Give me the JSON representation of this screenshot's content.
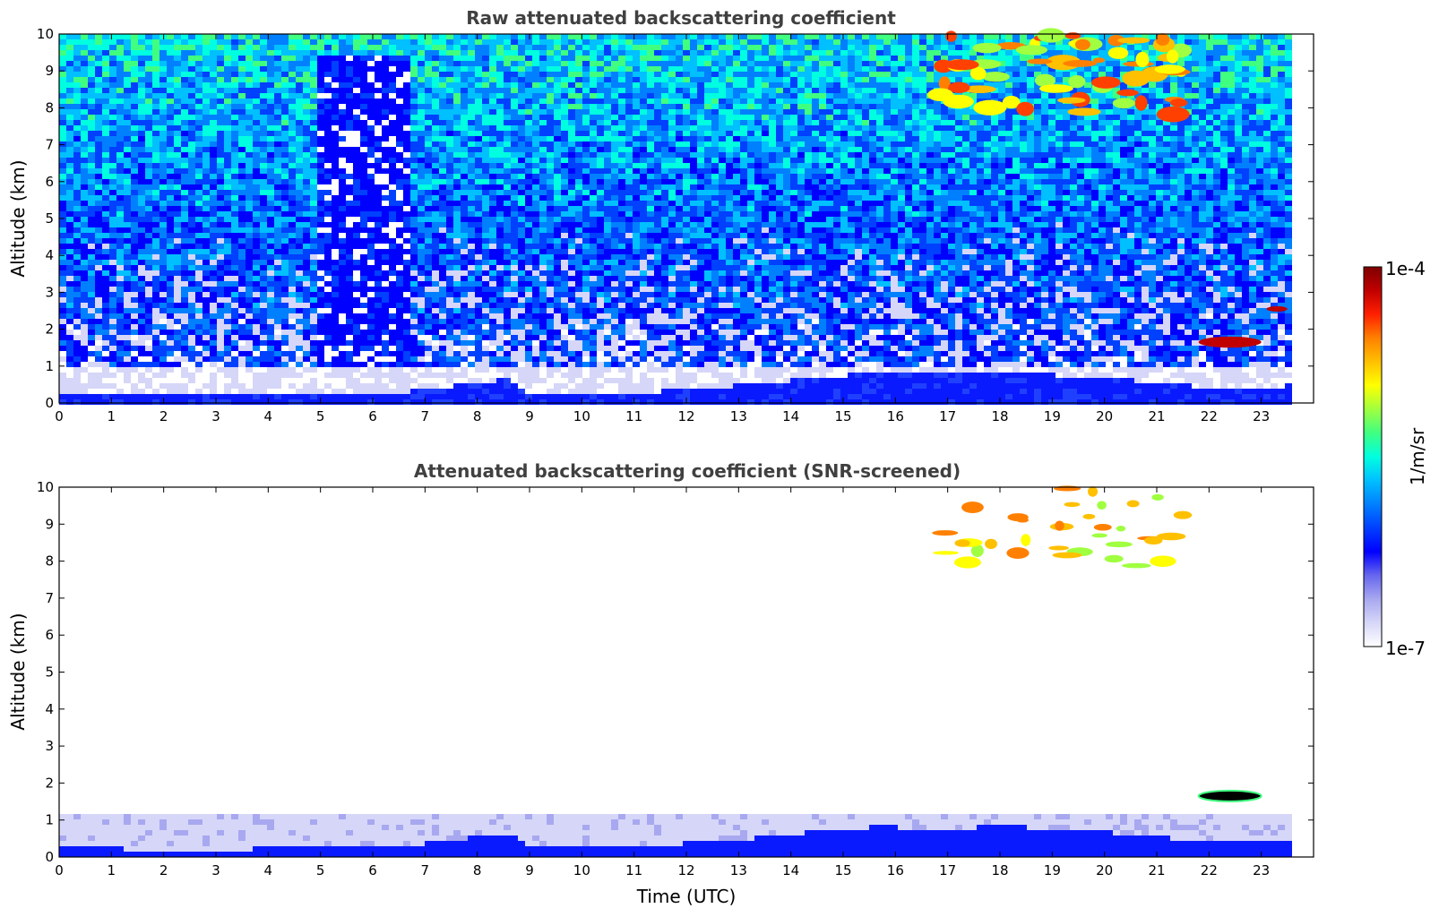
{
  "chart_data": [
    {
      "type": "heatmap",
      "title": "Raw attenuated backscattering coefficient",
      "xlabel": "",
      "ylabel": "Altitude (km)",
      "xlim": [
        0,
        24
      ],
      "ylim": [
        0,
        10
      ],
      "x_ticks": [
        "0",
        "1",
        "2",
        "3",
        "4",
        "5",
        "6",
        "7",
        "8",
        "9",
        "10",
        "11",
        "12",
        "13",
        "14",
        "15",
        "16",
        "17",
        "18",
        "19",
        "20",
        "21",
        "22",
        "23"
      ],
      "y_ticks": [
        "0",
        "1",
        "2",
        "3",
        "4",
        "5",
        "6",
        "7",
        "8",
        "9",
        "10"
      ],
      "data_end_time": 23.55,
      "features": [
        {
          "name": "boundary layer",
          "t0": 0,
          "t1": 23.55,
          "alt_top_profile": [
            [
              0,
              0.35
            ],
            [
              2,
              0.25
            ],
            [
              4,
              0.3
            ],
            [
              6.5,
              0.35
            ],
            [
              7.5,
              0.55
            ],
            [
              8.5,
              0.7
            ],
            [
              9,
              0.3
            ],
            [
              11,
              0.35
            ],
            [
              13,
              0.55
            ],
            [
              14,
              0.7
            ],
            [
              15.5,
              0.88
            ],
            [
              17,
              0.85
            ],
            [
              18,
              0.9
            ],
            [
              20,
              0.75
            ],
            [
              21,
              0.6
            ],
            [
              22.5,
              0.45
            ],
            [
              23.55,
              0.55
            ]
          ]
        },
        {
          "name": "cirrus",
          "t0": 16.8,
          "t1": 21.5,
          "alt_range": [
            7.8,
            10
          ]
        },
        {
          "name": "low cloud",
          "t0": 21.8,
          "t1": 23.0,
          "alt_range": [
            1.5,
            1.8
          ]
        },
        {
          "name": "elevated layer",
          "t0": 23.1,
          "t1": 23.5,
          "alt_range": [
            2.5,
            2.6
          ]
        }
      ]
    },
    {
      "type": "heatmap",
      "title": "Attenuated backscattering coefficient (SNR-screened)",
      "xlabel": "Time (UTC)",
      "ylabel": "Altitude (km)",
      "xlim": [
        0,
        24
      ],
      "ylim": [
        0,
        10
      ],
      "x_ticks": [
        "0",
        "1",
        "2",
        "3",
        "4",
        "5",
        "6",
        "7",
        "8",
        "9",
        "10",
        "11",
        "12",
        "13",
        "14",
        "15",
        "16",
        "17",
        "18",
        "19",
        "20",
        "21",
        "22",
        "23"
      ],
      "y_ticks": [
        "0",
        "1",
        "2",
        "3",
        "4",
        "5",
        "6",
        "7",
        "8",
        "9",
        "10"
      ],
      "data_end_time": 23.55
    }
  ],
  "colorbar": {
    "max_label": "1e-4",
    "min_label": "1e-7",
    "unit_label": "1/m/sr",
    "scale": "log",
    "range": [
      1e-07,
      0.0001
    ],
    "colors": [
      "#ffffff",
      "#d6d6f8",
      "#a8a8f0",
      "#6666ee",
      "#0000ff",
      "#0040ff",
      "#0080ff",
      "#00c0ff",
      "#00ffe0",
      "#40ff80",
      "#a0ff40",
      "#ffff00",
      "#ffc000",
      "#ff8000",
      "#ff2000",
      "#c00000",
      "#800000"
    ]
  }
}
